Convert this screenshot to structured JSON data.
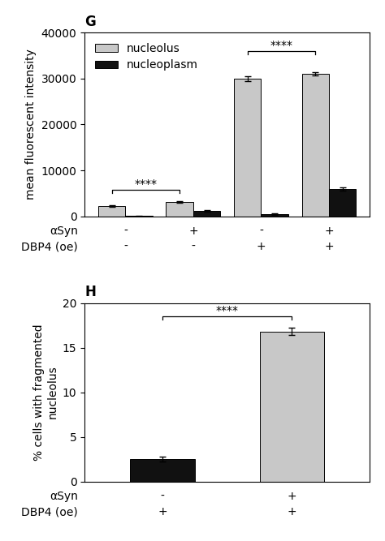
{
  "chart_data": [
    {
      "type": "bar",
      "title": "G",
      "ylabel": "mean fluorescent intensity",
      "x_rows": [
        {
          "label": "αSyn",
          "values": [
            "-",
            "+",
            "-",
            "+"
          ]
        },
        {
          "label": "DBP4 (oe)",
          "values": [
            "-",
            "-",
            "+",
            "+"
          ]
        }
      ],
      "series": [
        {
          "name": "nucleolus",
          "color": "#c8c8c8",
          "values": [
            2300,
            3200,
            30000,
            31000
          ],
          "errors": [
            200,
            200,
            500,
            400
          ]
        },
        {
          "name": "nucleoplasm",
          "color": "#111111",
          "values": [
            100,
            1200,
            500,
            6000
          ],
          "errors": [
            50,
            150,
            100,
            400
          ]
        }
      ],
      "ylim": [
        0,
        40000
      ],
      "yticks": [
        0,
        10000,
        20000,
        30000,
        40000
      ],
      "legend": "upper left",
      "annotations": [
        {
          "text": "****",
          "y": 5800,
          "series": "nucleolus",
          "between": [
            0,
            1
          ]
        },
        {
          "text": "****",
          "y": 36000,
          "series": "nucleolus",
          "between": [
            2,
            3
          ]
        }
      ]
    },
    {
      "type": "bar",
      "title": "H",
      "ylabel": "% cells with fragmented\nnucleolus",
      "x_rows": [
        {
          "label": "αSyn",
          "values": [
            "-",
            "+"
          ]
        },
        {
          "label": "DBP4 (oe)",
          "values": [
            "+",
            "+"
          ]
        }
      ],
      "values": [
        2.5,
        16.8
      ],
      "errors": [
        0.25,
        0.4
      ],
      "colors": [
        "#111111",
        "#c8c8c8"
      ],
      "ylim": [
        0,
        20
      ],
      "yticks": [
        0,
        5,
        10,
        15,
        20
      ],
      "annotations": [
        {
          "text": "****",
          "y": 18.5,
          "between": [
            0,
            1
          ]
        }
      ]
    }
  ]
}
